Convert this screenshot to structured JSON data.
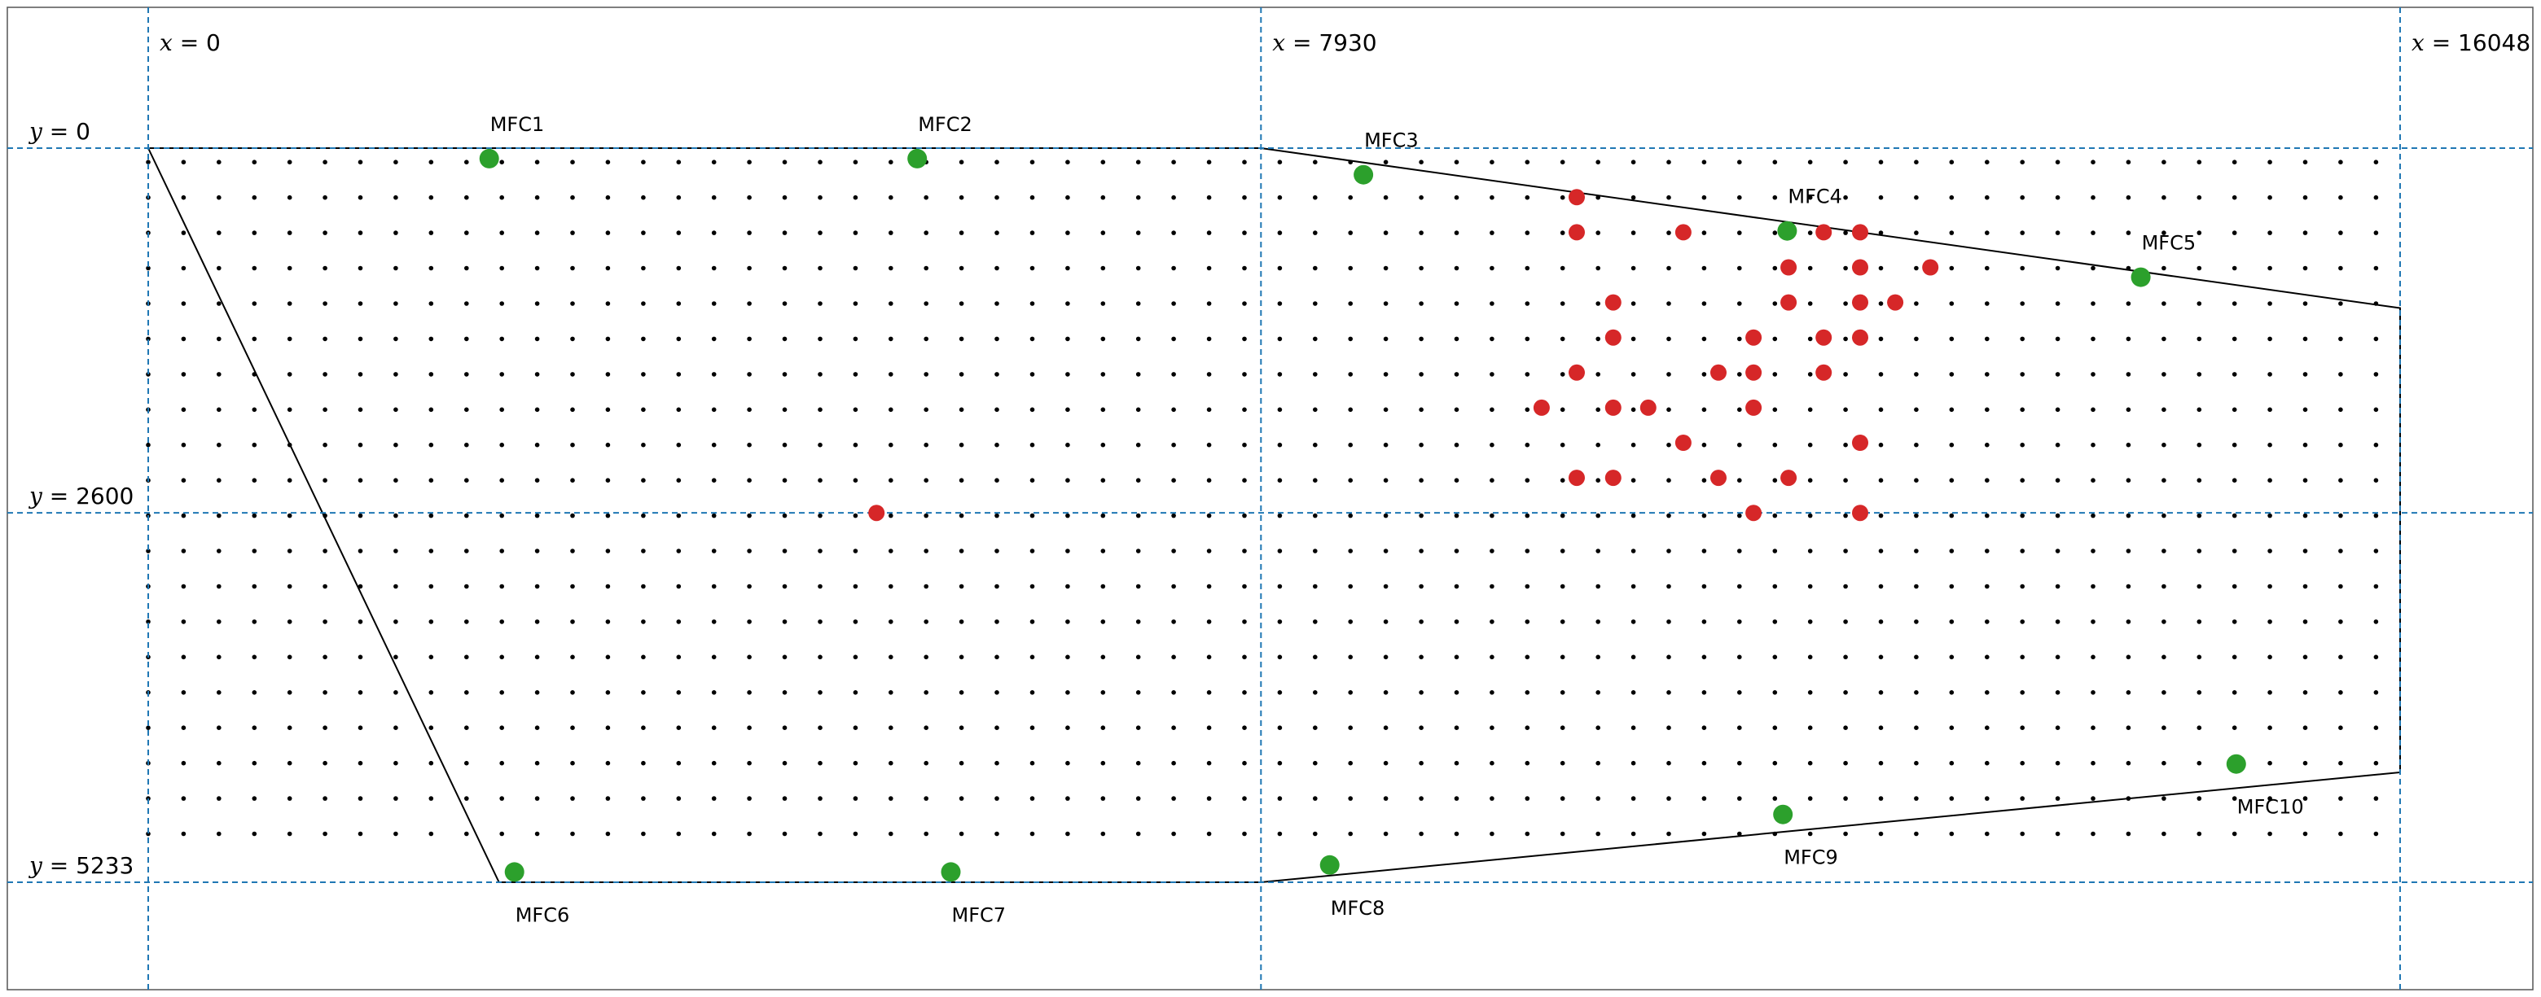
{
  "chart_data": {
    "type": "scatter",
    "title": "",
    "xlabel": "",
    "ylabel": "",
    "xlim": [
      -2000,
      17900
    ],
    "ylim": [
      6780,
      -2000
    ],
    "y_axis_inverted": true,
    "grid": false,
    "colors": {
      "frame": "#555555",
      "reference_line": "#1f77b4",
      "outline": "#000000",
      "grid_point": "#000000",
      "sensor": "#2ca02c",
      "flagged": "#d62728"
    },
    "reference_lines": {
      "vertical": [
        {
          "x": 0,
          "label": "x = 0",
          "var": "x",
          "value": "0"
        },
        {
          "x": 7930,
          "label": "x = 7930",
          "var": "x",
          "value": "7930"
        },
        {
          "x": 16048,
          "label": "x = 16048",
          "var": "x",
          "value": "16048"
        }
      ],
      "horizontal": [
        {
          "y": 0,
          "label": "y = 0",
          "var": "y",
          "value": "0"
        },
        {
          "y": 2600,
          "label": "y = 2600",
          "var": "y",
          "value": "2600"
        },
        {
          "y": 5233,
          "label": "y = 5233",
          "var": "y",
          "value": "5233"
        }
      ]
    },
    "outline": [
      [
        [
          0,
          0
        ],
        [
          7930,
          0
        ],
        [
          16048,
          1140
        ],
        [
          16048,
          4450
        ],
        [
          7930,
          5233
        ],
        [
          2500,
          5233
        ],
        [
          0,
          0
        ]
      ]
    ],
    "grid_points": {
      "x_start": 0,
      "x_end": 16048,
      "x_step": 252,
      "y_start": 100,
      "y_end": 5133,
      "y_step": 252
    },
    "sensors": [
      {
        "name": "MFC1",
        "x": 2430,
        "y": 75,
        "label_pos": "above"
      },
      {
        "name": "MFC2",
        "x": 5480,
        "y": 75,
        "label_pos": "above"
      },
      {
        "name": "MFC3",
        "x": 8660,
        "y": 190,
        "label_pos": "above"
      },
      {
        "name": "MFC4",
        "x": 11680,
        "y": 590,
        "label_pos": "above"
      },
      {
        "name": "MFC5",
        "x": 14200,
        "y": 920,
        "label_pos": "above"
      },
      {
        "name": "MFC6",
        "x": 2610,
        "y": 5160,
        "label_pos": "below"
      },
      {
        "name": "MFC7",
        "x": 5720,
        "y": 5160,
        "label_pos": "below"
      },
      {
        "name": "MFC8",
        "x": 8420,
        "y": 5110,
        "label_pos": "below"
      },
      {
        "name": "MFC9",
        "x": 11650,
        "y": 4750,
        "label_pos": "below"
      },
      {
        "name": "MFC10",
        "x": 14880,
        "y": 4390,
        "label_pos": "below"
      }
    ],
    "flagged_points": [
      [
        10180,
        350
      ],
      [
        10180,
        600
      ],
      [
        10940,
        600
      ],
      [
        11940,
        600
      ],
      [
        12200,
        600
      ],
      [
        11690,
        850
      ],
      [
        12200,
        850
      ],
      [
        12700,
        850
      ],
      [
        10440,
        1100
      ],
      [
        11690,
        1100
      ],
      [
        12200,
        1100
      ],
      [
        12450,
        1100
      ],
      [
        10440,
        1350
      ],
      [
        11440,
        1350
      ],
      [
        11940,
        1350
      ],
      [
        12200,
        1350
      ],
      [
        10180,
        1600
      ],
      [
        11190,
        1600
      ],
      [
        11440,
        1600
      ],
      [
        11940,
        1600
      ],
      [
        9930,
        1850
      ],
      [
        10440,
        1850
      ],
      [
        10690,
        1850
      ],
      [
        11440,
        1850
      ],
      [
        10940,
        2100
      ],
      [
        12200,
        2100
      ],
      [
        10180,
        2350
      ],
      [
        10440,
        2350
      ],
      [
        11190,
        2350
      ],
      [
        11690,
        2350
      ],
      [
        5190,
        2600
      ],
      [
        11440,
        2600
      ],
      [
        12200,
        2600
      ]
    ]
  }
}
